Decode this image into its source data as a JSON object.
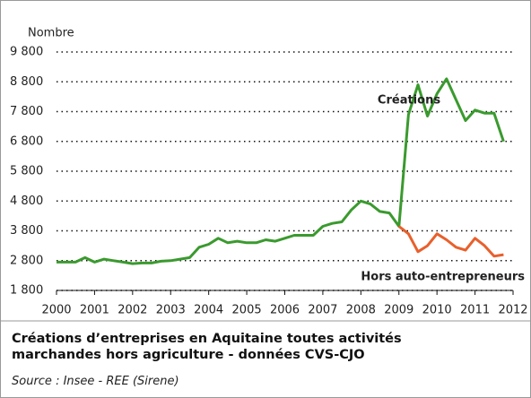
{
  "chart_data": {
    "type": "line",
    "title": [
      "Créations d’entreprises en Aquitaine toutes activités",
      "marchandes hors agriculture - données CVS-CJO"
    ],
    "source": "Source : Insee - REE (Sirene)",
    "y_label": "Nombre",
    "x": [
      2000,
      2000.25,
      2000.5,
      2000.75,
      2001,
      2001.25,
      2001.5,
      2001.75,
      2002,
      2002.25,
      2002.5,
      2002.75,
      2003,
      2003.25,
      2003.5,
      2003.75,
      2004,
      2004.25,
      2004.5,
      2004.75,
      2005,
      2005.25,
      2005.5,
      2005.75,
      2006,
      2006.25,
      2006.5,
      2006.75,
      2007,
      2007.25,
      2007.5,
      2007.75,
      2008,
      2008.25,
      2008.5,
      2008.75,
      2009,
      2009.25,
      2009.5,
      2009.75,
      2010,
      2010.25,
      2010.5,
      2010.75,
      2011,
      2011.25,
      2011.5,
      2011.75
    ],
    "series": [
      {
        "name": "Créations",
        "color": "#3a9a2e",
        "values": [
          2750,
          2750,
          2750,
          2900,
          2750,
          2850,
          2800,
          2750,
          2700,
          2720,
          2720,
          2780,
          2800,
          2850,
          2900,
          3250,
          3350,
          3550,
          3400,
          3450,
          3400,
          3400,
          3500,
          3450,
          3550,
          3650,
          3650,
          3650,
          3950,
          4050,
          4100,
          4500,
          4800,
          4700,
          4450,
          4400,
          3950,
          7700,
          8700,
          7650,
          8400,
          8900,
          8200,
          7500,
          7850,
          7750,
          7750,
          6800
        ]
      },
      {
        "name": "Hors auto-entrepreneurs",
        "color": "#e8602c",
        "values": [
          null,
          null,
          null,
          null,
          null,
          null,
          null,
          null,
          null,
          null,
          null,
          null,
          null,
          null,
          null,
          null,
          null,
          null,
          null,
          null,
          null,
          null,
          null,
          null,
          null,
          null,
          null,
          null,
          null,
          null,
          null,
          null,
          null,
          null,
          null,
          null,
          3950,
          3700,
          3100,
          3300,
          3700,
          3500,
          3250,
          3150,
          3550,
          3300,
          2950,
          3000
        ]
      }
    ],
    "xlim": [
      2000,
      2012
    ],
    "xticks": [
      2000,
      2001,
      2002,
      2003,
      2004,
      2005,
      2006,
      2007,
      2008,
      2009,
      2010,
      2011,
      2012
    ],
    "ylim": [
      1800,
      9800
    ],
    "yticks": [
      {
        "value": 1800,
        "label": "1 800"
      },
      {
        "value": 2800,
        "label": "2 800"
      },
      {
        "value": 3800,
        "label": "3 800"
      },
      {
        "value": 4800,
        "label": "4 800"
      },
      {
        "value": 5800,
        "label": "5 800"
      },
      {
        "value": 6800,
        "label": "6 800"
      },
      {
        "value": 7800,
        "label": "7 800"
      },
      {
        "value": 8800,
        "label": "8 800"
      },
      {
        "value": 9800,
        "label": "9 800"
      }
    ],
    "grid": true
  }
}
